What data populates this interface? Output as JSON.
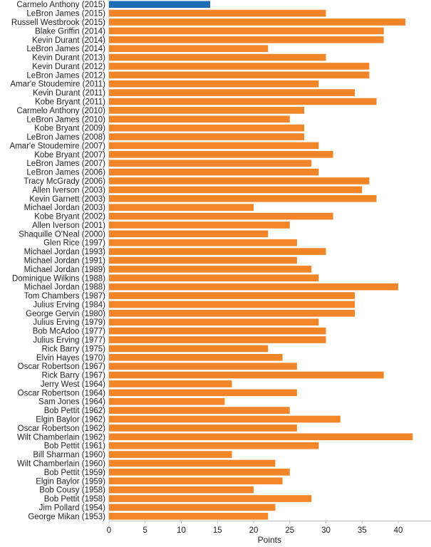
{
  "chart_data": {
    "type": "bar",
    "orientation": "horizontal",
    "xlabel": "Points",
    "ylabel": "",
    "xlim": [
      0,
      44
    ],
    "xticks": [
      0,
      5,
      10,
      15,
      20,
      25,
      30,
      35,
      40
    ],
    "grid": false,
    "colors": {
      "default": "#f28528",
      "highlight": "#1f6eb4"
    },
    "highlight_index": 0,
    "categories": [
      "Carmelo Anthony (2015)",
      "LeBron James (2015)",
      "Russell Westbrook (2015)",
      "Blake Griffin (2014)",
      "Kevin Durant (2014)",
      "LeBron James (2014)",
      "Kevin Durant (2013)",
      "Kevin Durant (2012)",
      "LeBron James (2012)",
      "Amar'e Stoudemire (2011)",
      "Kevin Durant (2011)",
      "Kobe Bryant (2011)",
      "Carmelo Anthony (2010)",
      "LeBron James (2010)",
      "Kobe Bryant (2009)",
      "LeBron James (2008)",
      "Amar'e Stoudemire (2007)",
      "Kobe Bryant (2007)",
      "LeBron James (2007)",
      "LeBron James (2006)",
      "Tracy McGrady (2006)",
      "Allen Iverson (2003)",
      "Kevin Garnett (2003)",
      "Michael Jordan (2003)",
      "Kobe Bryant (2002)",
      "Allen Iverson (2001)",
      "Shaquille O'Neal (2000)",
      "Glen Rice (1997)",
      "Michael Jordan (1993)",
      "Michael Jordan (1991)",
      "Michael Jordan (1989)",
      "Dominique Wilkins (1988)",
      "Michael Jordan (1988)",
      "Tom Chambers (1987)",
      "Julius Erving (1984)",
      "George Gervin (1980)",
      "Julius Erving (1979)",
      "Bob McAdoo (1977)",
      "Julius Erving (1977)",
      "Rick Barry (1975)",
      "Elvin Hayes (1970)",
      "Oscar Robertson (1967)",
      "Rick Barry (1967)",
      "Jerry West (1964)",
      "Oscar Robertson (1964)",
      "Sam Jones (1964)",
      "Bob Pettit (1962)",
      "Elgin Baylor (1962)",
      "Oscar Robertson (1962)",
      "Wilt Chamberlain (1962)",
      "Bob Pettit (1961)",
      "Bill Sharman (1960)",
      "Wilt Chamberlain (1960)",
      "Bob Pettit (1959)",
      "Elgin Baylor (1959)",
      "Bob Cousy (1958)",
      "Bob Pettit (1958)",
      "Jim Pollard (1954)",
      "George Mikan (1953)"
    ],
    "values": [
      14,
      30,
      41,
      38,
      38,
      22,
      30,
      36,
      36,
      29,
      34,
      37,
      27,
      25,
      27,
      27,
      29,
      31,
      28,
      29,
      36,
      35,
      37,
      20,
      31,
      25,
      22,
      26,
      30,
      26,
      28,
      29,
      40,
      34,
      34,
      34,
      29,
      30,
      30,
      22,
      24,
      26,
      38,
      17,
      26,
      16,
      25,
      32,
      26,
      42,
      29,
      17,
      23,
      25,
      24,
      20,
      28,
      23,
      22
    ]
  }
}
